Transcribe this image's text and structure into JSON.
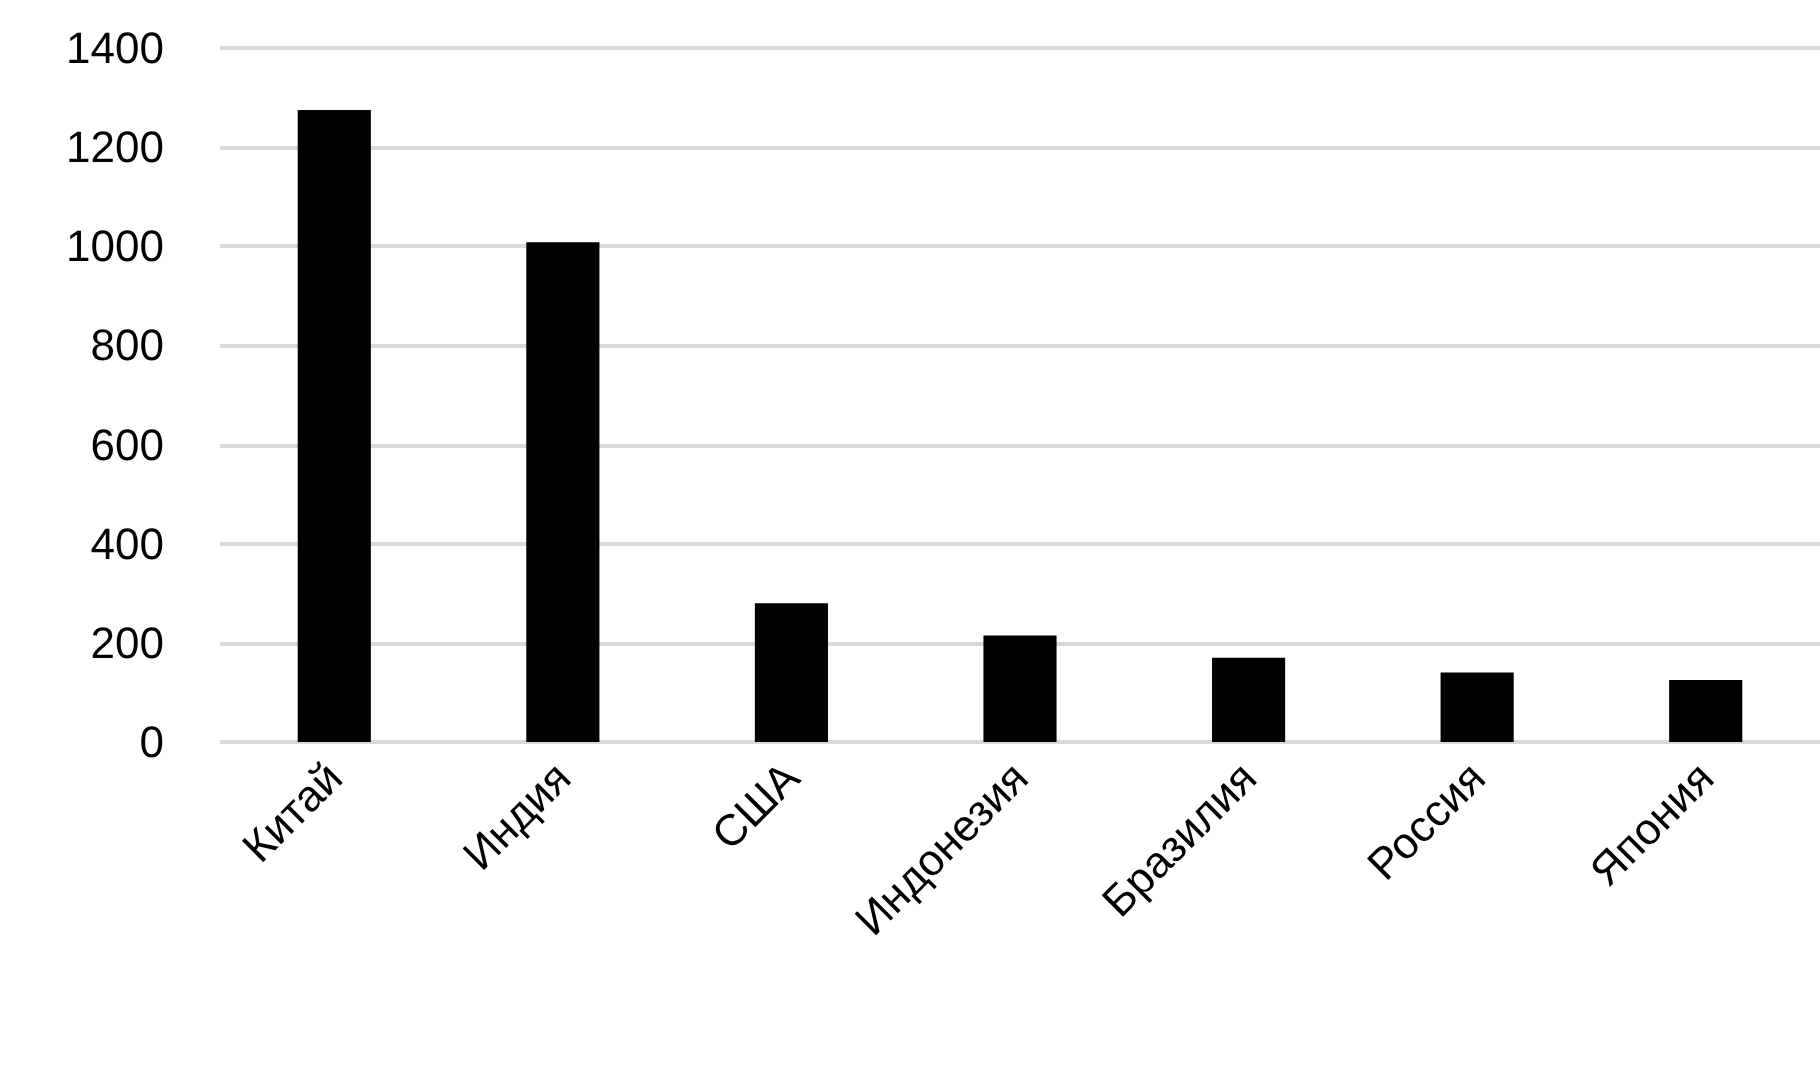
{
  "chart_data": {
    "type": "bar",
    "categories": [
      "Китай",
      "Индия",
      "США",
      "Индонезия",
      "Бразилия",
      "Россия",
      "Япония"
    ],
    "values": [
      1275,
      1008,
      280,
      215,
      170,
      140,
      125
    ],
    "color": "#000000",
    "ylim": [
      0,
      1400
    ],
    "yticks": [
      0,
      200,
      400,
      600,
      800,
      1000,
      1200,
      1400
    ],
    "grid": "y"
  }
}
